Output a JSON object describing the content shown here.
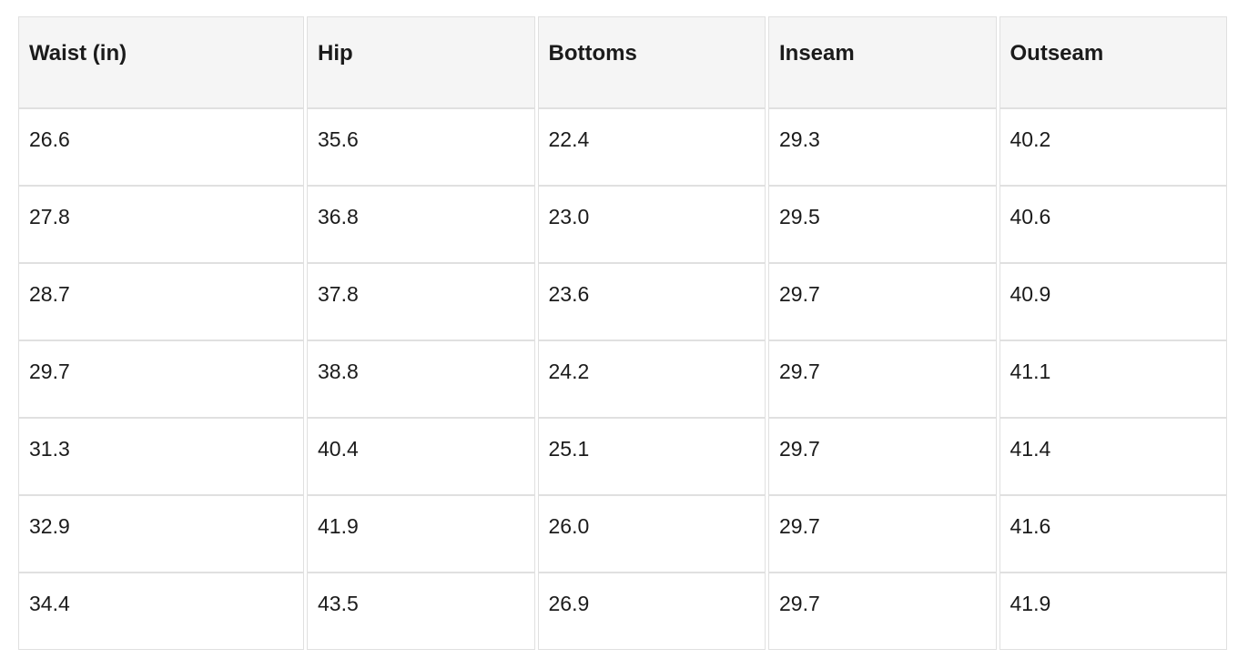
{
  "page": {
    "background": "#ffffff"
  },
  "table": {
    "name": "size-chart",
    "columns": [
      "Waist (in)",
      "Hip",
      "Bottoms",
      "Inseam",
      "Outseam"
    ],
    "rows": [
      [
        "26.6",
        "35.6",
        "22.4",
        "29.3",
        "40.2"
      ],
      [
        "27.8",
        "36.8",
        "23.0",
        "29.5",
        "40.6"
      ],
      [
        "28.7",
        "37.8",
        "23.6",
        "29.7",
        "40.9"
      ],
      [
        "29.7",
        "38.8",
        "24.2",
        "29.7",
        "41.1"
      ],
      [
        "31.3",
        "40.4",
        "25.1",
        "29.7",
        "41.4"
      ],
      [
        "32.9",
        "41.9",
        "26.0",
        "29.7",
        "41.6"
      ],
      [
        "34.4",
        "43.5",
        "26.9",
        "29.7",
        "41.9"
      ]
    ],
    "colors": {
      "header_bg": "#f5f5f5",
      "border": "#e0e0e0",
      "text": "#1b1b1b"
    }
  },
  "chart_data": {
    "type": "table",
    "title": "",
    "columns": [
      "Waist (in)",
      "Hip",
      "Bottoms",
      "Inseam",
      "Outseam"
    ],
    "rows": [
      [
        26.6,
        35.6,
        22.4,
        29.3,
        40.2
      ],
      [
        27.8,
        36.8,
        23.0,
        29.5,
        40.6
      ],
      [
        28.7,
        37.8,
        23.6,
        29.7,
        40.9
      ],
      [
        29.7,
        38.8,
        24.2,
        29.7,
        41.1
      ],
      [
        31.3,
        40.4,
        25.1,
        29.7,
        41.4
      ],
      [
        32.9,
        41.9,
        26.0,
        29.7,
        41.6
      ],
      [
        34.4,
        43.5,
        26.9,
        29.7,
        41.9
      ]
    ],
    "units": "inches"
  }
}
